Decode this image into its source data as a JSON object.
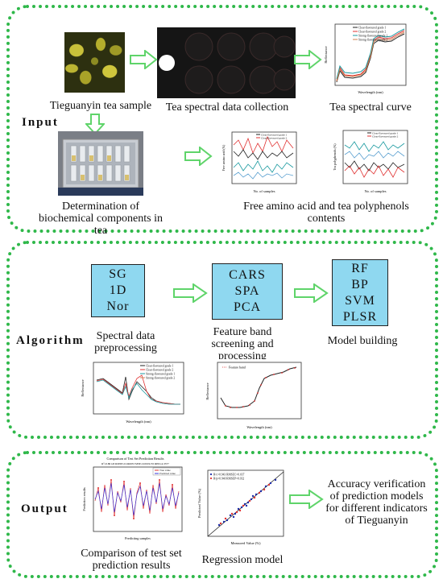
{
  "input": {
    "section_label": "Input",
    "tea_sample_caption": "Tieguanyin tea sample",
    "spectral_collection_caption": "Tea spectral data collection",
    "spectral_curve_caption": "Tea spectral curve",
    "biochemical_caption": "Determination of biochemical components in tea",
    "amino_polyphenol_caption": "Free amino acid and tea polyphenols contents",
    "legend": [
      "Clear-flavoured grade 1",
      "Clear-flavoured grade 2",
      "Strong-flavoured grade 1",
      "Strong-flavoured grade 2"
    ],
    "spectral_axes": {
      "xlabel": "Wavelength (nm)",
      "ylabel": "Reflectance"
    },
    "amino_axes": {
      "xlabel": "No. of samples",
      "ylabel": "Free amino acid (%)"
    },
    "polyphenol_axes": {
      "xlabel": "No. of samples",
      "ylabel": "Tea polyphenols (%)"
    }
  },
  "algorithm": {
    "section_label": "Algorithm",
    "box1_items": [
      "SG",
      "1D",
      "Nor"
    ],
    "box2_items": [
      "CARS",
      "SPA",
      "PCA"
    ],
    "box3_items": [
      "RF",
      "BP",
      "SVM",
      "PLSR"
    ],
    "box1_caption": "Spectral data preprocessing",
    "box2_caption": "Feature band screening and processing",
    "box3_caption": "Model building",
    "feature_legend": "Feature band",
    "pre_axes": {
      "xlabel": "Wavelength (nm)",
      "ylabel": "Reflectance"
    },
    "feat_axes": {
      "xlabel": "Wavelength (nm)",
      "ylabel": "Reflectance"
    }
  },
  "output": {
    "section_label": "Output",
    "comparison_title": "Comparison of Test Set Prediction Results",
    "comparison_subtitle": "R²=0.80143 RMSE=0.046033 MSE=0.0019155 RPD=4.3377",
    "comparison_legend": [
      "True value",
      "Predicted value"
    ],
    "comparison_axes": {
      "xlabel": "Predicting samples",
      "ylabel": "Prediction results"
    },
    "regression_legend": [
      "R²c=0.943  RMSEC=0.037",
      "R²p=0.940  RMSEP=0.032"
    ],
    "regression_axes": {
      "xlabel": "Measured Value (%)",
      "ylabel": "Predicted Value (%)"
    },
    "comparison_caption": "Comparison of test set prediction results",
    "regression_caption": "Regression model",
    "accuracy_caption": "Accuracy verification of prediction models for different indicators of Tieguanyin"
  },
  "colors": {
    "panel_border": "#2fb84a",
    "arrow": "#5fd46a",
    "box_fill": "#8fd8f0",
    "series": [
      "#222222",
      "#e03030",
      "#1a9aa0",
      "#d08050"
    ]
  }
}
